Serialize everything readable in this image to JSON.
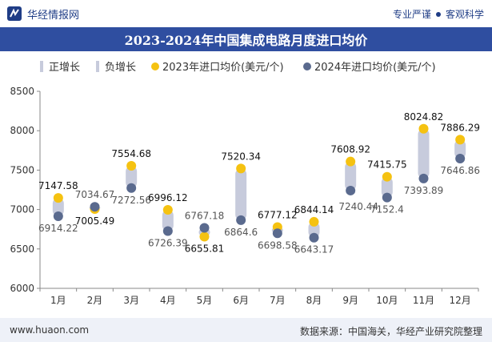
{
  "header": {
    "brand": "华经情报网",
    "tagline_a": "专业严谨",
    "tagline_b": "客观科学"
  },
  "colors": {
    "title_bar": "#2f4ea0",
    "bar": "#c7cbdc",
    "dot_2023": "#f5c211",
    "dot_2024": "#5a6a8e",
    "brand": "#1f3d86"
  },
  "footer": {
    "website": "www.huaon.com",
    "source": "数据来源：中国海关，华经产业研究院整理"
  },
  "chart_data": {
    "type": "scatter",
    "title": "2023-2024年中国集成电路月度进口均价",
    "categories": [
      "1月",
      "2月",
      "3月",
      "4月",
      "5月",
      "6月",
      "7月",
      "8月",
      "9月",
      "10月",
      "11月",
      "12月"
    ],
    "ylim": [
      6000,
      8500
    ],
    "yticks": [
      "6000",
      "6500",
      "7000",
      "7500",
      "8000",
      "8500"
    ],
    "legend": [
      "正增长",
      "负增长",
      "2023年进口均价(美元/个)",
      "2024年进口均价(美元/个)"
    ],
    "series": [
      {
        "name": "2023年进口均价(美元/个)",
        "values": [
          7147.58,
          7005.49,
          7554.68,
          6996.12,
          6655.81,
          7520.34,
          6777.12,
          6844.14,
          7608.92,
          7415.75,
          8024.82,
          7886.29
        ],
        "labels": [
          "7147.58",
          "7005.49",
          "7554.68",
          "6996.12",
          "6655.81",
          "7520.34",
          "6777.12",
          "6844.14",
          "7608.92",
          "7415.75",
          "8024.82",
          "7886.29"
        ]
      },
      {
        "name": "2024年进口均价(美元/个)",
        "values": [
          6914.22,
          7034.67,
          7272.56,
          6726.39,
          6767.18,
          6864.6,
          6698.58,
          6643.17,
          7240.44,
          7152.4,
          7393.89,
          7646.86
        ],
        "labels": [
          "6914.22",
          "7034.67",
          "7272.56",
          "6726.39",
          "6767.18",
          "6864.6",
          "6698.58",
          "6643.17",
          "7240.44",
          "7152.4",
          "7393.89",
          "7646.86"
        ]
      }
    ]
  }
}
